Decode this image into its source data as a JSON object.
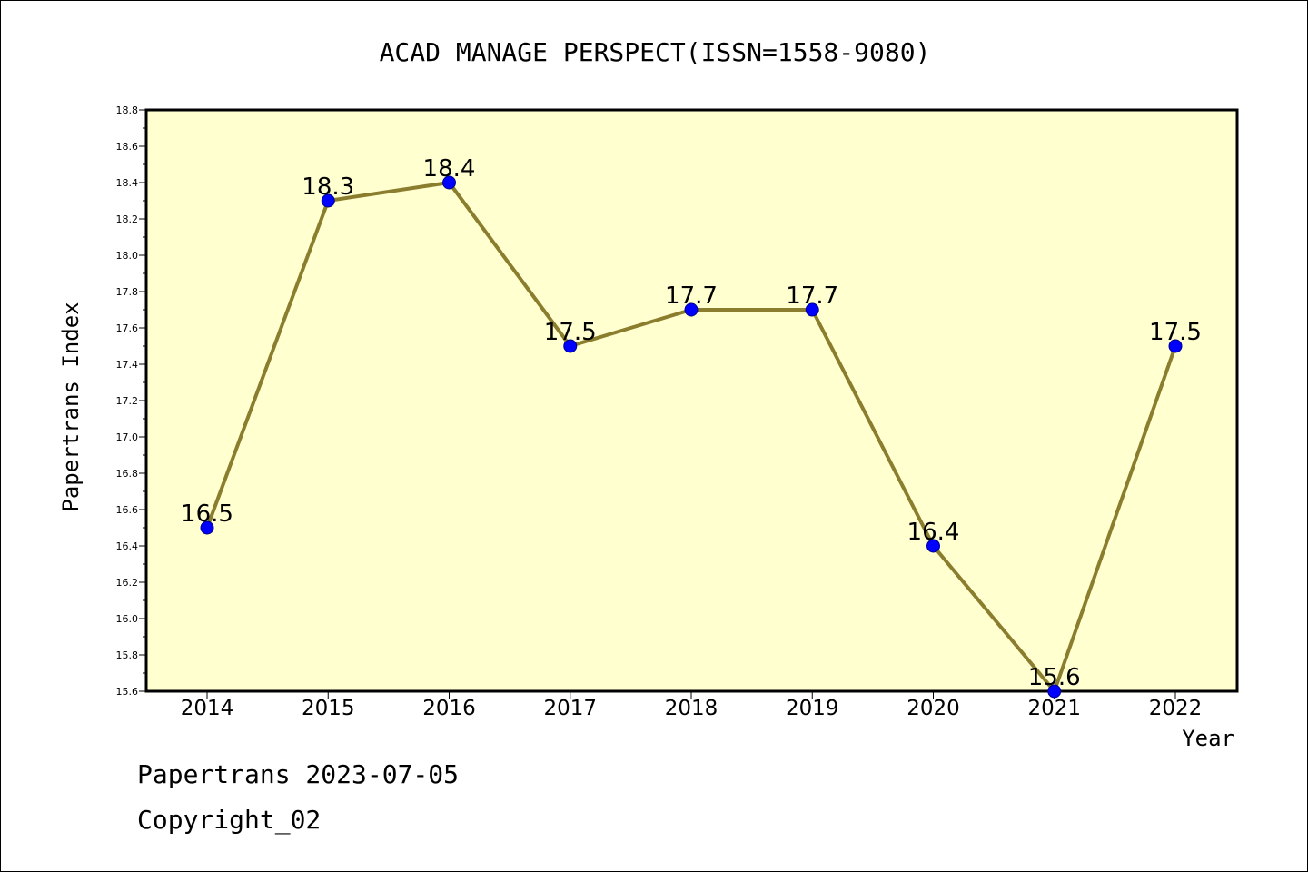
{
  "chart_data": {
    "type": "line",
    "title": "ACAD MANAGE PERSPECT(ISSN=1558-9080)",
    "xlabel": "Year",
    "ylabel": "Papertrans Index",
    "categories": [
      "2014",
      "2015",
      "2016",
      "2017",
      "2018",
      "2019",
      "2020",
      "2021",
      "2022"
    ],
    "series": [
      {
        "values": [
          16.5,
          18.3,
          18.4,
          17.5,
          17.7,
          17.7,
          16.4,
          15.6,
          17.5
        ]
      }
    ],
    "data_labels": [
      "16.5",
      "18.3",
      "18.4",
      "17.5",
      "17.7",
      "17.7",
      "16.4",
      "15.6",
      "17.5"
    ],
    "ylim": [
      15.6,
      18.8
    ],
    "yticks": [
      "15.6",
      "15.8",
      "16.0",
      "16.2",
      "16.4",
      "16.6",
      "16.8",
      "17.0",
      "17.2",
      "17.4",
      "17.6",
      "17.8",
      "18.0",
      "18.2",
      "18.4",
      "18.6",
      "18.8"
    ],
    "grid": false,
    "colors": {
      "plot_background": "#ffffd0",
      "line": "#8b7d2e",
      "marker_fill": "#0000ff",
      "marker_edge": "#00008b"
    }
  },
  "footer": {
    "date_line": "Papertrans 2023-07-05",
    "copyright_line": "Copyright_02"
  }
}
